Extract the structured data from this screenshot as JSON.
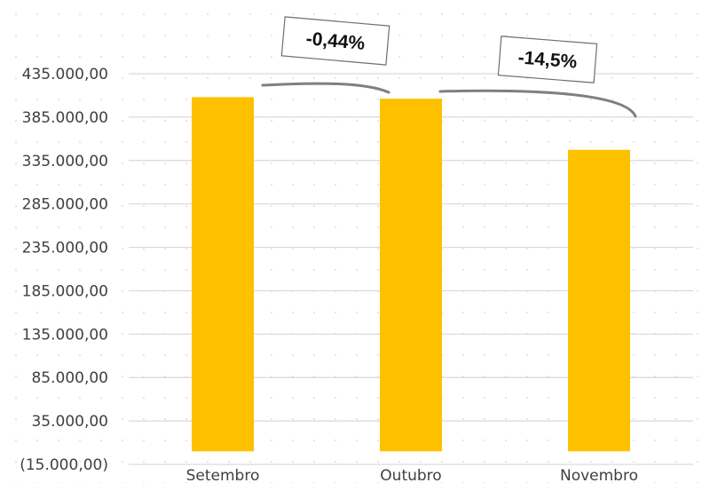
{
  "chart_data": {
    "type": "bar",
    "categories": [
      "Setembro",
      "Outubro",
      "Novembro"
    ],
    "values": [
      408000,
      406200,
      347300
    ],
    "ylim": [
      -15000,
      435000
    ],
    "yticks": [
      -15000,
      35000,
      85000,
      135000,
      185000,
      235000,
      285000,
      335000,
      385000,
      435000
    ],
    "ytick_labels": [
      "(15.000,00)",
      "35.000,00",
      "85.000,00",
      "135.000,00",
      "185.000,00",
      "235.000,00",
      "285.000,00",
      "335.000,00",
      "385.000,00",
      "435.000,00"
    ],
    "grid": true,
    "annotations": [
      {
        "label": "-0,44%",
        "from": "Setembro",
        "to": "Outubro"
      },
      {
        "label": "-14,5%",
        "from": "Outubro",
        "to": "Novembro"
      }
    ],
    "colors": {
      "bar": "#FFC000",
      "grid": "#d9d9d9",
      "callout": "#7f7f7f"
    }
  }
}
